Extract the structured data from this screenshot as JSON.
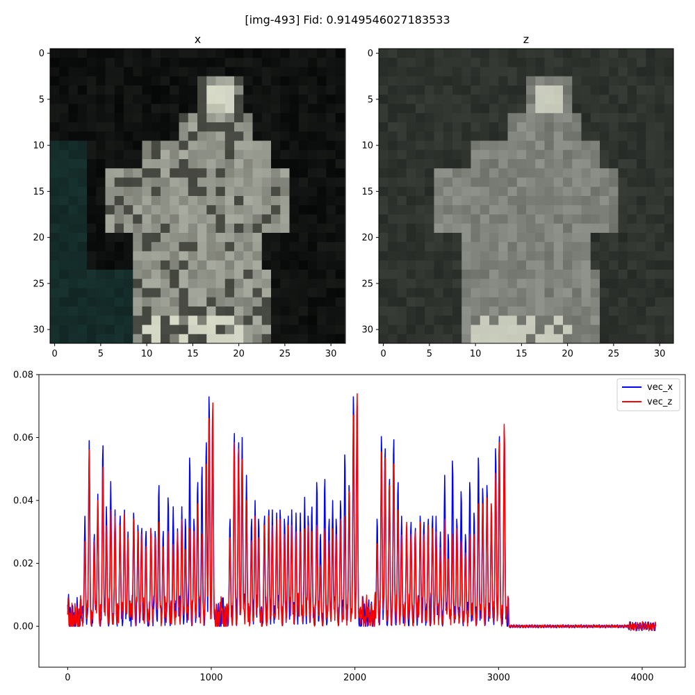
{
  "figure": {
    "suptitle": "[img-493] Fid: 0.9149546027183533"
  },
  "chart_data": [
    {
      "type": "heatmap",
      "title": "x",
      "description_axes": "32x32 image grid",
      "xlim": [
        -0.5,
        31.5
      ],
      "ylim": [
        31.5,
        -0.5
      ],
      "xticks": [
        "0",
        "5",
        "10",
        "15",
        "20",
        "25",
        "30"
      ],
      "yticks": [
        "0",
        "5",
        "10",
        "15",
        "20",
        "25",
        "30"
      ],
      "palette": {
        "background": "#050807",
        "dark_teal": "#17322f",
        "figure_gray": "#6f7168",
        "figure_light": "#a8aca0",
        "highlight": "#e8ead6"
      }
    },
    {
      "type": "heatmap",
      "title": "z",
      "xlim": [
        -0.5,
        31.5
      ],
      "ylim": [
        31.5,
        -0.5
      ],
      "xticks": [
        "0",
        "5",
        "10",
        "15",
        "20",
        "25",
        "30"
      ],
      "yticks": [
        "0",
        "5",
        "10",
        "15",
        "20",
        "25",
        "30"
      ],
      "palette": {
        "background": "#262a26",
        "figure_gray": "#6d716a",
        "figure_light": "#9ea29a",
        "highlight": "#dfe2cf"
      }
    },
    {
      "type": "line",
      "xlim": [
        -200,
        4300
      ],
      "ylim": [
        -0.013,
        0.08
      ],
      "xticks": [
        "0",
        "1000",
        "2000",
        "3000",
        "4000"
      ],
      "yticks": [
        "0.00",
        "0.02",
        "0.04",
        "0.06",
        "0.08"
      ],
      "grid": false,
      "legend_position": "top-right",
      "length": 4096,
      "active_end": 3072,
      "series": [
        {
          "name": "vec_x",
          "color": "#0000ff"
        },
        {
          "name": "vec_z",
          "color": "#ff0000"
        }
      ],
      "peaks_vec_x": [
        [
          120,
          0.035
        ],
        [
          150,
          0.059
        ],
        [
          185,
          0.03
        ],
        [
          210,
          0.042
        ],
        [
          245,
          0.059
        ],
        [
          270,
          0.038
        ],
        [
          300,
          0.046
        ],
        [
          330,
          0.037
        ],
        [
          365,
          0.036
        ],
        [
          395,
          0.038
        ],
        [
          420,
          0.03
        ],
        [
          460,
          0.037
        ],
        [
          490,
          0.033
        ],
        [
          515,
          0.032
        ],
        [
          545,
          0.031
        ],
        [
          580,
          0.032
        ],
        [
          610,
          0.031
        ],
        [
          635,
          0.046
        ],
        [
          665,
          0.031
        ],
        [
          700,
          0.042
        ],
        [
          735,
          0.038
        ],
        [
          765,
          0.031
        ],
        [
          795,
          0.038
        ],
        [
          820,
          0.035
        ],
        [
          850,
          0.055
        ],
        [
          880,
          0.035
        ],
        [
          905,
          0.047
        ],
        [
          935,
          0.052
        ],
        [
          965,
          0.06
        ],
        [
          985,
          0.075
        ],
        [
          1010,
          0.071
        ],
        [
          1130,
          0.035
        ],
        [
          1160,
          0.063
        ],
        [
          1190,
          0.06
        ],
        [
          1215,
          0.06
        ],
        [
          1245,
          0.048
        ],
        [
          1280,
          0.035
        ],
        [
          1305,
          0.04
        ],
        [
          1330,
          0.035
        ],
        [
          1370,
          0.036
        ],
        [
          1400,
          0.038
        ],
        [
          1425,
          0.037
        ],
        [
          1455,
          0.036
        ],
        [
          1480,
          0.038
        ],
        [
          1510,
          0.035
        ],
        [
          1535,
          0.036
        ],
        [
          1560,
          0.037
        ],
        [
          1590,
          0.036
        ],
        [
          1620,
          0.036
        ],
        [
          1650,
          0.041
        ],
        [
          1675,
          0.036
        ],
        [
          1700,
          0.039
        ],
        [
          1735,
          0.047
        ],
        [
          1760,
          0.03
        ],
        [
          1790,
          0.048
        ],
        [
          1820,
          0.035
        ],
        [
          1845,
          0.04
        ],
        [
          1870,
          0.035
        ],
        [
          1900,
          0.041
        ],
        [
          1930,
          0.056
        ],
        [
          1960,
          0.046
        ],
        [
          1990,
          0.075
        ],
        [
          2015,
          0.072
        ],
        [
          2155,
          0.035
        ],
        [
          2185,
          0.062
        ],
        [
          2210,
          0.058
        ],
        [
          2240,
          0.048
        ],
        [
          2270,
          0.061
        ],
        [
          2300,
          0.047
        ],
        [
          2325,
          0.035
        ],
        [
          2360,
          0.033
        ],
        [
          2390,
          0.034
        ],
        [
          2420,
          0.032
        ],
        [
          2455,
          0.036
        ],
        [
          2480,
          0.034
        ],
        [
          2510,
          0.035
        ],
        [
          2540,
          0.036
        ],
        [
          2565,
          0.035
        ],
        [
          2595,
          0.03
        ],
        [
          2625,
          0.048
        ],
        [
          2650,
          0.03
        ],
        [
          2680,
          0.054
        ],
        [
          2710,
          0.035
        ],
        [
          2740,
          0.044
        ],
        [
          2770,
          0.03
        ],
        [
          2800,
          0.047
        ],
        [
          2830,
          0.037
        ],
        [
          2860,
          0.055
        ],
        [
          2890,
          0.045
        ],
        [
          2920,
          0.046
        ],
        [
          2950,
          0.04
        ],
        [
          2980,
          0.058
        ],
        [
          3005,
          0.062
        ],
        [
          3040,
          0.064
        ]
      ],
      "peaks_vec_z": [
        [
          120,
          0.027
        ],
        [
          150,
          0.056
        ],
        [
          185,
          0.028
        ],
        [
          210,
          0.04
        ],
        [
          245,
          0.052
        ],
        [
          270,
          0.032
        ],
        [
          300,
          0.037
        ],
        [
          330,
          0.035
        ],
        [
          365,
          0.033
        ],
        [
          395,
          0.037
        ],
        [
          420,
          0.028
        ],
        [
          460,
          0.035
        ],
        [
          490,
          0.031
        ],
        [
          515,
          0.03
        ],
        [
          545,
          0.026
        ],
        [
          580,
          0.032
        ],
        [
          610,
          0.029
        ],
        [
          635,
          0.034
        ],
        [
          665,
          0.026
        ],
        [
          700,
          0.031
        ],
        [
          735,
          0.026
        ],
        [
          765,
          0.03
        ],
        [
          795,
          0.034
        ],
        [
          820,
          0.025
        ],
        [
          850,
          0.032
        ],
        [
          880,
          0.031
        ],
        [
          905,
          0.04
        ],
        [
          935,
          0.03
        ],
        [
          965,
          0.053
        ],
        [
          985,
          0.068
        ],
        [
          1010,
          0.073
        ],
        [
          1130,
          0.029
        ],
        [
          1160,
          0.06
        ],
        [
          1190,
          0.058
        ],
        [
          1215,
          0.053
        ],
        [
          1245,
          0.04
        ],
        [
          1280,
          0.028
        ],
        [
          1305,
          0.035
        ],
        [
          1330,
          0.029
        ],
        [
          1370,
          0.033
        ],
        [
          1400,
          0.036
        ],
        [
          1425,
          0.032
        ],
        [
          1455,
          0.034
        ],
        [
          1480,
          0.035
        ],
        [
          1510,
          0.03
        ],
        [
          1535,
          0.033
        ],
        [
          1560,
          0.032
        ],
        [
          1590,
          0.03
        ],
        [
          1620,
          0.03
        ],
        [
          1650,
          0.031
        ],
        [
          1675,
          0.033
        ],
        [
          1700,
          0.031
        ],
        [
          1735,
          0.033
        ],
        [
          1760,
          0.02
        ],
        [
          1790,
          0.032
        ],
        [
          1820,
          0.028
        ],
        [
          1845,
          0.031
        ],
        [
          1870,
          0.03
        ],
        [
          1900,
          0.035
        ],
        [
          1930,
          0.036
        ],
        [
          1960,
          0.044
        ],
        [
          1990,
          0.069
        ],
        [
          2015,
          0.076
        ],
        [
          2155,
          0.027
        ],
        [
          2185,
          0.057
        ],
        [
          2210,
          0.055
        ],
        [
          2240,
          0.046
        ],
        [
          2270,
          0.053
        ],
        [
          2300,
          0.038
        ],
        [
          2325,
          0.029
        ],
        [
          2360,
          0.034
        ],
        [
          2390,
          0.03
        ],
        [
          2420,
          0.031
        ],
        [
          2455,
          0.034
        ],
        [
          2480,
          0.03
        ],
        [
          2510,
          0.033
        ],
        [
          2540,
          0.032
        ],
        [
          2565,
          0.03
        ],
        [
          2595,
          0.025
        ],
        [
          2625,
          0.034
        ],
        [
          2650,
          0.022
        ],
        [
          2680,
          0.03
        ],
        [
          2710,
          0.032
        ],
        [
          2740,
          0.028
        ],
        [
          2770,
          0.024
        ],
        [
          2800,
          0.03
        ],
        [
          2830,
          0.03
        ],
        [
          2860,
          0.04
        ],
        [
          2890,
          0.04
        ],
        [
          2920,
          0.042
        ],
        [
          2950,
          0.04
        ],
        [
          2980,
          0.05
        ],
        [
          3005,
          0.06
        ],
        [
          3040,
          0.066
        ]
      ]
    }
  ]
}
